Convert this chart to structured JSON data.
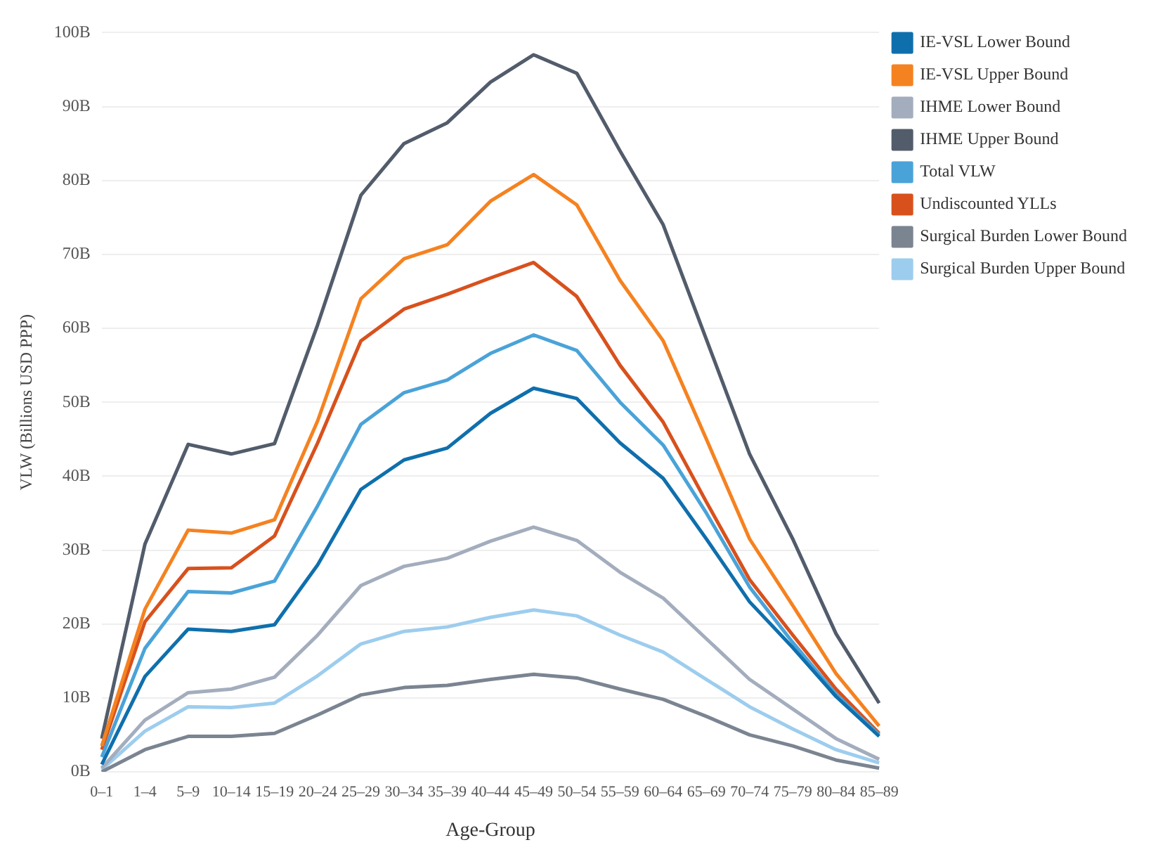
{
  "chart_data": {
    "type": "line",
    "xlabel": "Age-Group",
    "ylabel": "VLW (Billions USD PPP)",
    "categories": [
      "0–1",
      "1–4",
      "5–9",
      "10–14",
      "15–19",
      "20–24",
      "25–29",
      "30–34",
      "35–39",
      "40–44",
      "45–49",
      "50–54",
      "55–59",
      "60–64",
      "65–69",
      "70–74",
      "75–79",
      "80–84",
      "85–89"
    ],
    "series": [
      {
        "name": "IE-VSL Lower Bound",
        "color": "#0f6fad",
        "values": [
          1,
          12.9,
          19.3,
          19,
          19.9,
          28,
          38.2,
          42.2,
          43.8,
          48.5,
          51.9,
          50.5,
          44.5,
          39.7,
          31.5,
          23,
          16.8,
          10.2,
          4.8
        ]
      },
      {
        "name": "IE-VSL Upper Bound",
        "color": "#f58220",
        "values": [
          3.5,
          22,
          32.7,
          32.3,
          34.1,
          47.5,
          64,
          69.4,
          71.3,
          77.2,
          80.8,
          76.7,
          66.5,
          58.3,
          45,
          31.5,
          22.5,
          13.3,
          6.2
        ]
      },
      {
        "name": "IHME Lower Bound",
        "color": "#a3adbd",
        "values": [
          0.5,
          7,
          10.7,
          11.2,
          12.8,
          18.5,
          25.2,
          27.8,
          28.9,
          31.2,
          33.1,
          31.3,
          27,
          23.5,
          18,
          12.5,
          8.5,
          4.5,
          1.7
        ]
      },
      {
        "name": "IHME Upper Bound",
        "color": "#525c6b",
        "values": [
          4.5,
          30.8,
          44.3,
          43,
          44.4,
          60.5,
          78,
          85,
          87.8,
          93.3,
          97,
          94.5,
          84,
          74,
          58.5,
          43,
          31.5,
          18.7,
          9.3
        ]
      },
      {
        "name": "Total VLW",
        "color": "#4aa3d8",
        "values": [
          2,
          16.7,
          24.4,
          24.2,
          25.8,
          36,
          47,
          51.3,
          53,
          56.6,
          59.1,
          57,
          50,
          44.2,
          35,
          25,
          17.5,
          10.5,
          5
        ]
      },
      {
        "name": "Undiscounted YLLs",
        "color": "#d8511d",
        "values": [
          3,
          20.3,
          27.5,
          27.6,
          31.9,
          44.5,
          58.3,
          62.6,
          64.6,
          66.8,
          68.9,
          64.3,
          55,
          47.3,
          36.5,
          26,
          18.5,
          11.2,
          5.2
        ]
      },
      {
        "name": "Surgical Burden Lower Bound",
        "color": "#7b8491",
        "values": [
          0,
          3,
          4.8,
          4.8,
          5.2,
          7.7,
          10.4,
          11.4,
          11.7,
          12.5,
          13.2,
          12.7,
          11.2,
          9.8,
          7.5,
          5,
          3.5,
          1.6,
          0.5
        ]
      },
      {
        "name": "Surgical Burden Upper Bound",
        "color": "#9dcdee",
        "values": [
          0.3,
          5.5,
          8.8,
          8.7,
          9.3,
          13,
          17.3,
          19,
          19.6,
          20.9,
          21.9,
          21.1,
          18.5,
          16.2,
          12.5,
          8.8,
          5.8,
          3,
          1.2
        ]
      }
    ],
    "ylim": [
      0,
      100
    ],
    "yticks": [
      {
        "value": 0,
        "label": "0B"
      },
      {
        "value": 10,
        "label": "10B"
      },
      {
        "value": 20,
        "label": "20B"
      },
      {
        "value": 30,
        "label": "30B"
      },
      {
        "value": 40,
        "label": "40B"
      },
      {
        "value": 50,
        "label": "50B"
      },
      {
        "value": 60,
        "label": "60B"
      },
      {
        "value": 70,
        "label": "70B"
      },
      {
        "value": 80,
        "label": "80B"
      },
      {
        "value": 90,
        "label": "90B"
      },
      {
        "value": 100,
        "label": "100B"
      }
    ],
    "grid": "y",
    "legend": "top right",
    "marker": "none",
    "line_style": "solid"
  }
}
